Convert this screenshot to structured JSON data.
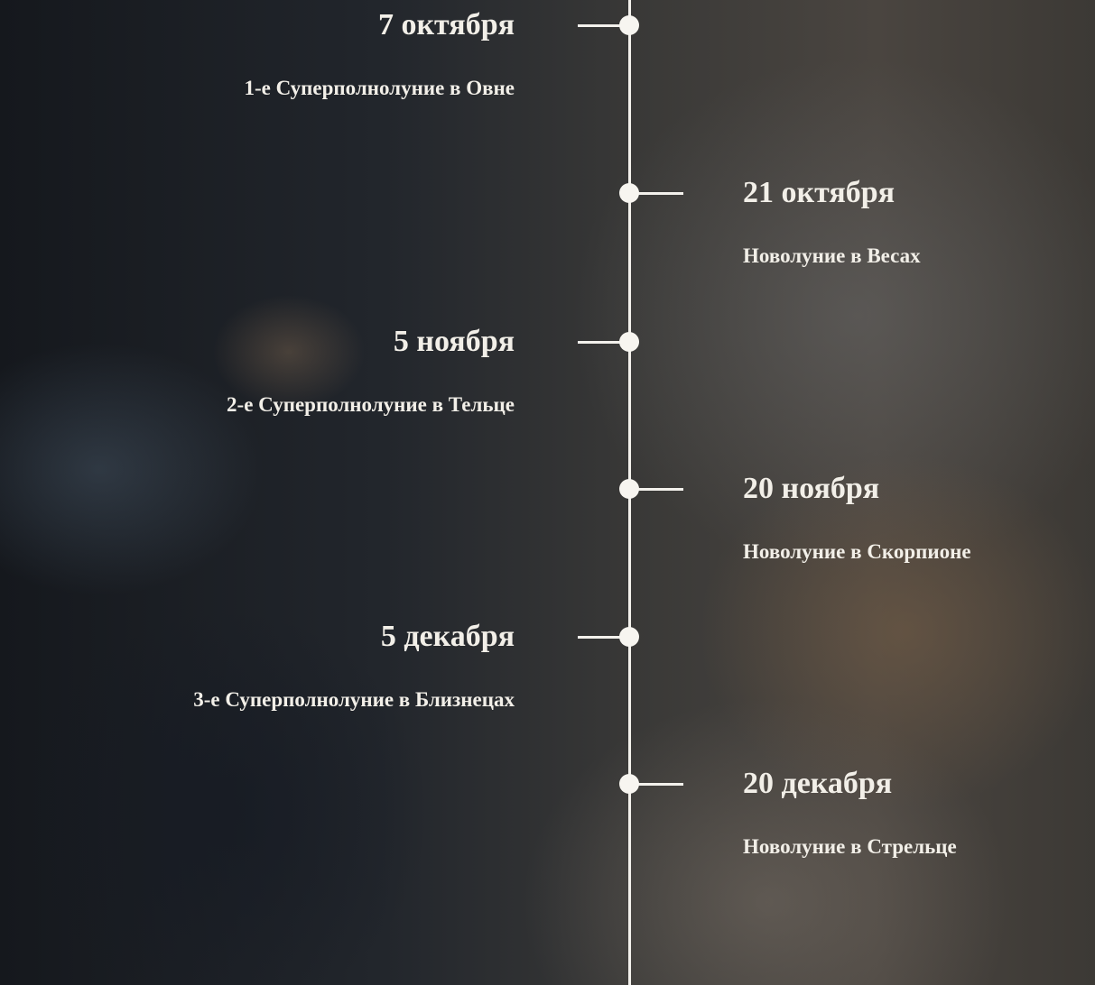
{
  "timeline": {
    "events": [
      {
        "date": "7 октября",
        "description": "1-е Суперполнолуние в Овне"
      },
      {
        "date": "21 октября",
        "description": "Новолуние в Весах"
      },
      {
        "date": "5 ноября",
        "description": "2-е Суперполнолуние в Тельце"
      },
      {
        "date": "20 ноября",
        "description": "Новолуние в Скорпионе"
      },
      {
        "date": "5 декабря",
        "description": "3-е Суперполнолуние в Близнецах"
      },
      {
        "date": "20 декабря",
        "description": "Новолуние в Стрельце"
      }
    ]
  }
}
